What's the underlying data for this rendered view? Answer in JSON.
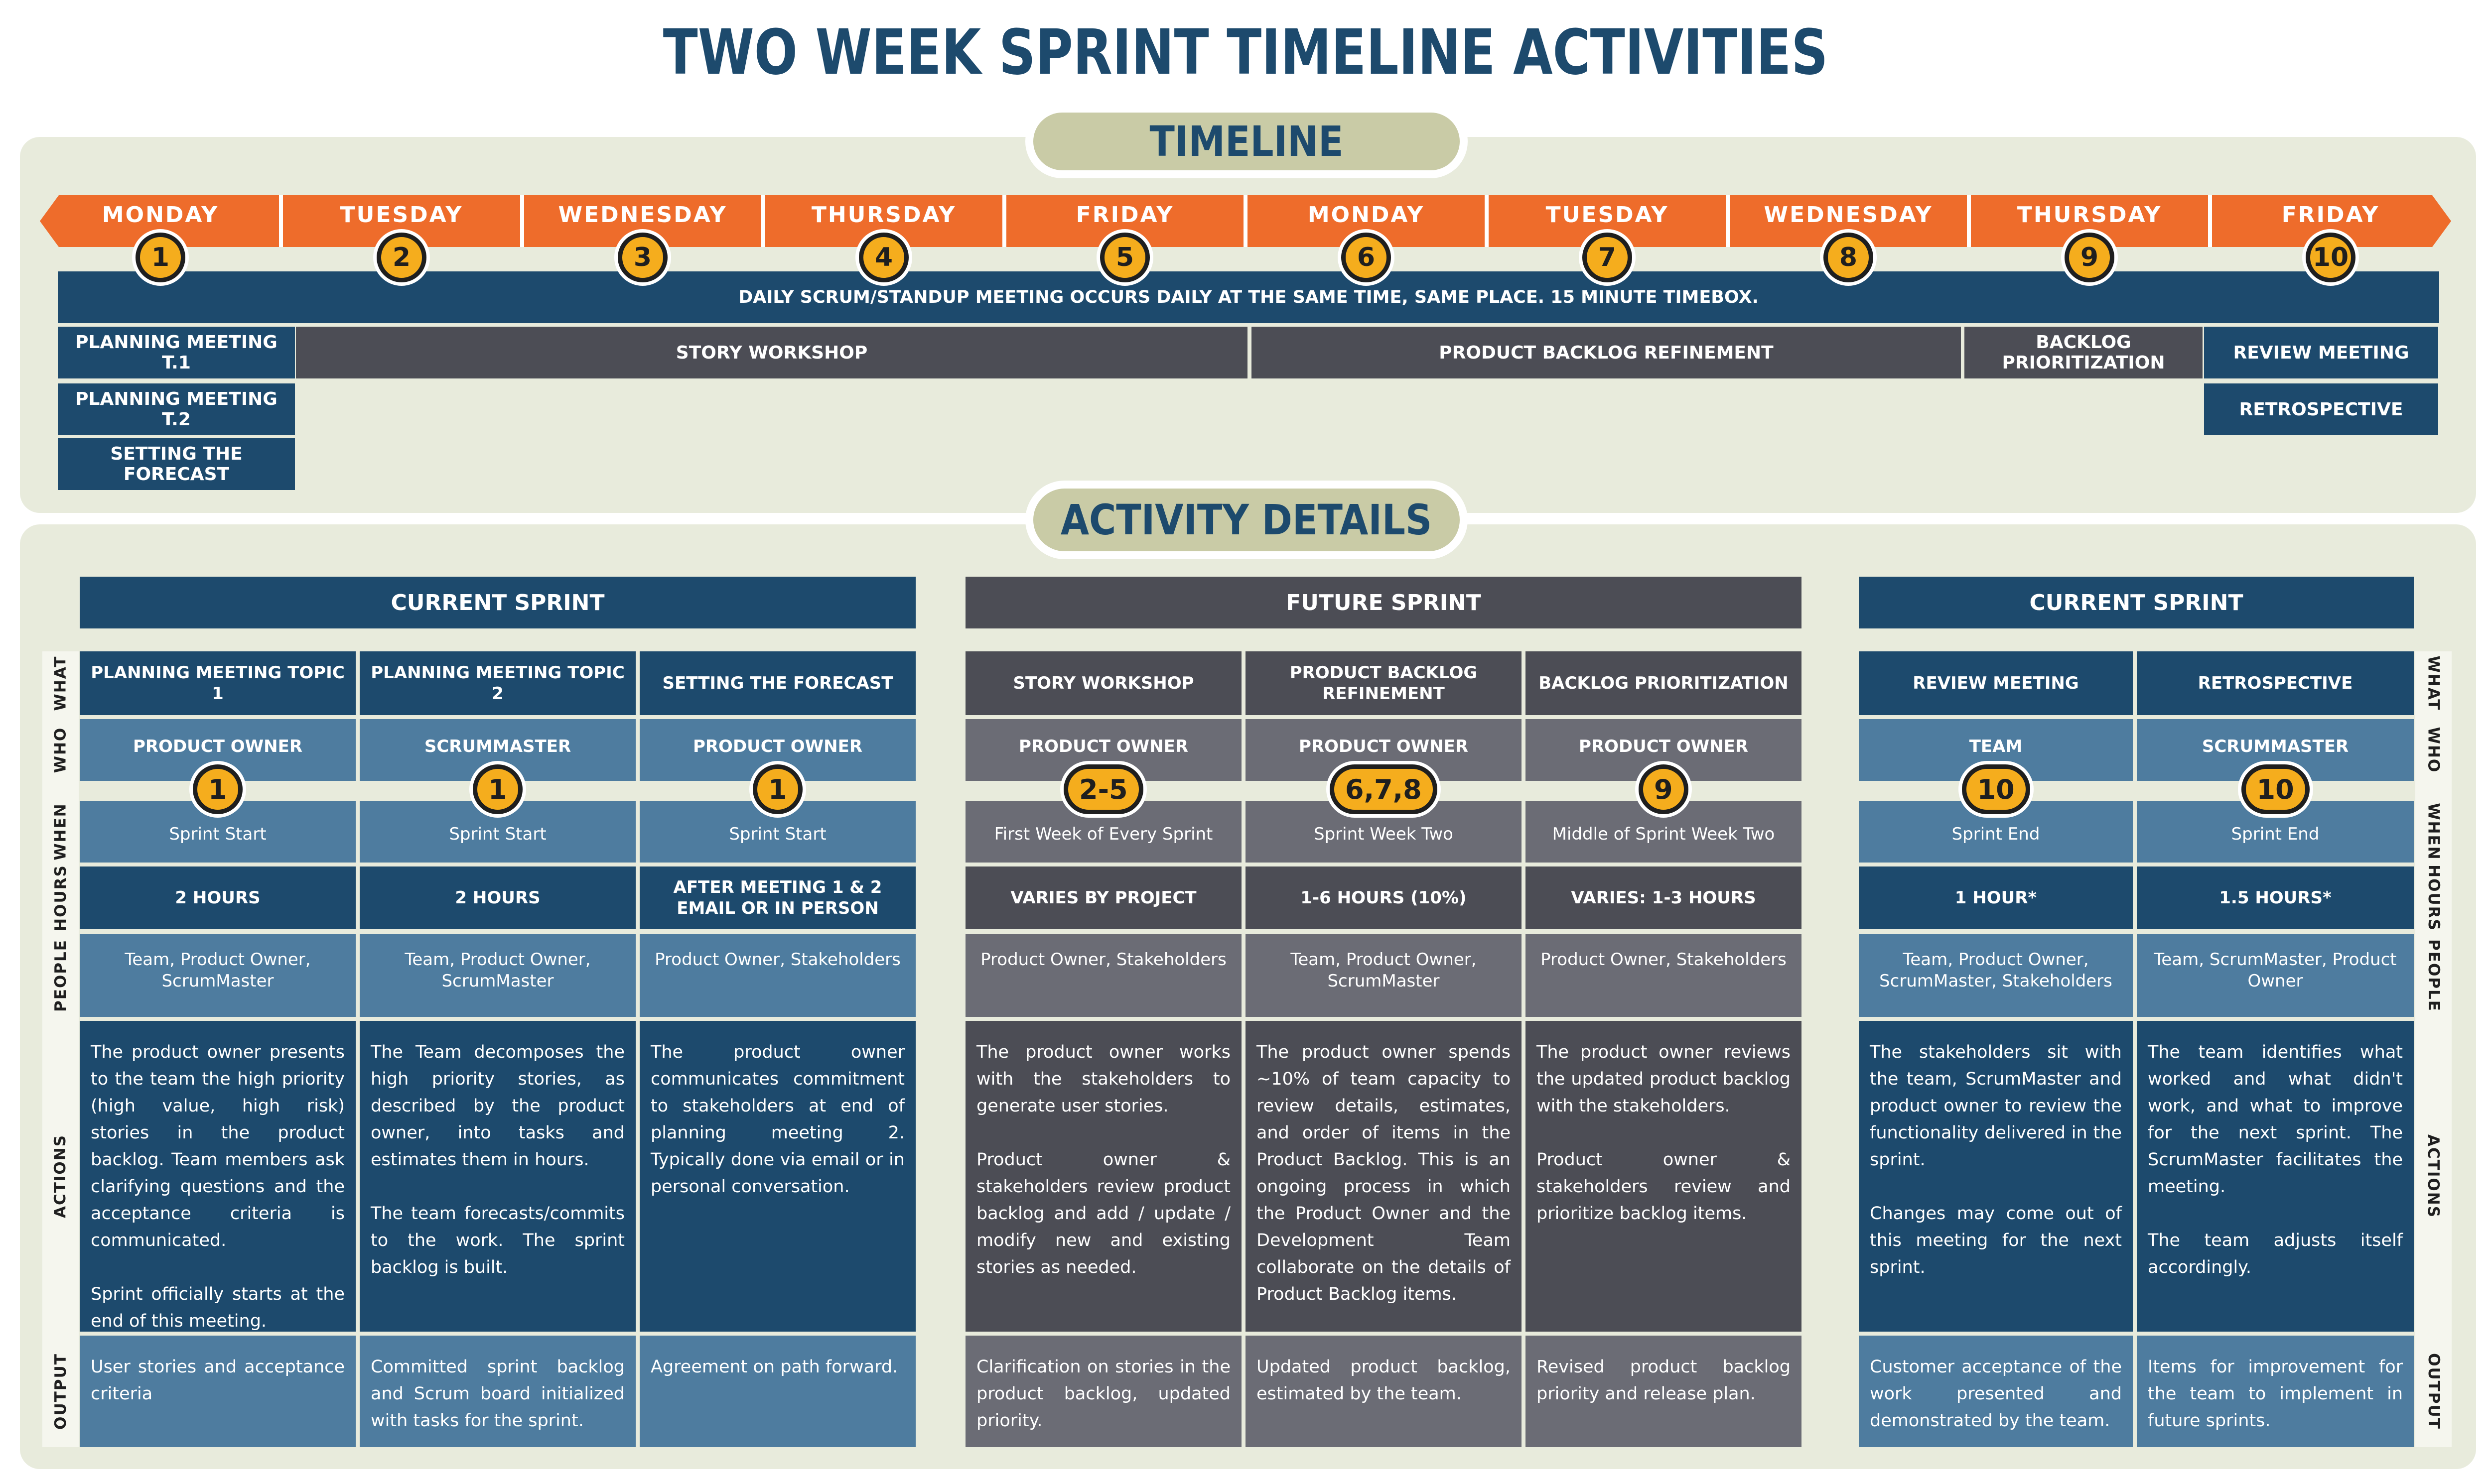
{
  "title": "TWO WEEK SPRINT TIMELINE ACTIVITIES",
  "timeline": {
    "label": "TIMELINE",
    "days": [
      {
        "name": "MONDAY",
        "num": "1"
      },
      {
        "name": "TUESDAY",
        "num": "2"
      },
      {
        "name": "WEDNESDAY",
        "num": "3"
      },
      {
        "name": "THURSDAY",
        "num": "4"
      },
      {
        "name": "FRIDAY",
        "num": "5"
      },
      {
        "name": "MONDAY",
        "num": "6"
      },
      {
        "name": "TUESDAY",
        "num": "7"
      },
      {
        "name": "WEDNESDAY",
        "num": "8"
      },
      {
        "name": "THURSDAY",
        "num": "9"
      },
      {
        "name": "FRIDAY",
        "num": "10"
      }
    ],
    "daily_scrum": "DAILY SCRUM/STANDUP MEETING OCCURS DAILY AT THE SAME TIME, SAME PLACE. 15 MINUTE TIMEBOX.",
    "planning_t1": "PLANNING MEETING T.1",
    "planning_t2": "PLANNING MEETING T.2",
    "forecast": "SETTING THE FORECAST",
    "story_workshop": "STORY WORKSHOP",
    "backlog_refinement": "PRODUCT BACKLOG REFINEMENT",
    "backlog_prioritization": "BACKLOG PRIORITIZATION",
    "review": "REVIEW MEETING",
    "retro": "RETROSPECTIVE"
  },
  "details": {
    "label": "ACTIVITY DETAILS",
    "groups": [
      "CURRENT SPRINT",
      "FUTURE SPRINT",
      "CURRENT SPRINT"
    ],
    "row_labels": {
      "what": "WHAT",
      "who": "WHO",
      "when": "WHEN",
      "hours": "HOURS",
      "people": "PEOPLE",
      "actions": "ACTIONS",
      "output": "OUTPUT"
    },
    "activities": [
      {
        "what": "PLANNING MEETING TOPIC 1",
        "who": "PRODUCT OWNER",
        "day": "1",
        "when": "Sprint Start",
        "hours": "2 HOURS",
        "people": "Team, Product Owner, ScrumMaster",
        "actions": "The product owner presents to the team the high priority (high value, high risk) stories in the product backlog. Team members ask clarifying questions and the acceptance criteria is communicated.\n\nSprint officially starts at the end of this meeting.",
        "output": "User stories and acceptance criteria"
      },
      {
        "what": "PLANNING MEETING TOPIC 2",
        "who": "SCRUMMASTER",
        "day": "1",
        "when": "Sprint Start",
        "hours": "2 HOURS",
        "people": "Team, Product Owner, ScrumMaster",
        "actions": "The Team decomposes the high priority stories, as described by the product owner, into tasks and estimates them in hours.\n\nThe team forecasts/commits to the work. The sprint backlog is built.",
        "output": "Committed sprint backlog and Scrum board initialized with tasks for the sprint."
      },
      {
        "what": "SETTING THE FORECAST",
        "who": "PRODUCT OWNER",
        "day": "1",
        "when": "Sprint Start",
        "hours": "AFTER MEETING 1 & 2 EMAIL OR IN PERSON",
        "people": "Product Owner, Stakeholders",
        "actions": "The product owner communicates commitment to stakeholders at end of planning meeting 2. Typically done via email or in personal conversation.",
        "output": "Agreement on path forward."
      },
      {
        "what": "STORY WORKSHOP",
        "who": "PRODUCT OWNER",
        "day": "2-5",
        "when": "First Week of Every Sprint",
        "hours": "VARIES BY PROJECT",
        "people": "Product Owner, Stakeholders",
        "actions": "The product owner works with the stakeholders to generate user stories.\n\nProduct owner & stakeholders review product backlog and add / update / modify new and existing stories as needed.",
        "output": "Clarification on stories in the product backlog, updated priority."
      },
      {
        "what": "PRODUCT BACKLOG REFINEMENT",
        "who": "PRODUCT OWNER",
        "day": "6,7,8",
        "when": "Sprint Week Two",
        "hours": "1-6 HOURS (10%)",
        "people": "Team, Product Owner, ScrumMaster",
        "actions": "The product owner spends ~10% of team capacity to review details, estimates, and order of items in the Product Backlog. This is an ongoing process in which the Product Owner and the Development Team collaborate on the details of Product Backlog items.",
        "output": "Updated product backlog, estimated by the team."
      },
      {
        "what": "BACKLOG PRIORITIZATION",
        "who": "PRODUCT OWNER",
        "day": "9",
        "when": "Middle of Sprint Week Two",
        "hours": "VARIES: 1-3 HOURS",
        "people": "Product Owner, Stakeholders",
        "actions": "The product owner reviews the updated product backlog with the stakeholders.\n\nProduct owner & stakeholders review and prioritize backlog items.",
        "output": "Revised product backlog priority and release plan."
      },
      {
        "what": "REVIEW MEETING",
        "who": "TEAM",
        "day": "10",
        "when": "Sprint End",
        "hours": "1 HOUR*",
        "people": "Team, Product Owner, ScrumMaster, Stakeholders",
        "actions": "The stakeholders sit with the team, ScrumMaster and product owner to review the functionality delivered in the sprint.\n\nChanges may come out of this meeting for the next sprint.",
        "output": "Customer acceptance of the work presented and demonstrated by the team."
      },
      {
        "what": "RETROSPECTIVE",
        "who": "SCRUMMASTER",
        "day": "10",
        "when": "Sprint End",
        "hours": "1.5 HOURS*",
        "people": "Team, ScrumMaster, Product Owner",
        "actions": "The team identifies what worked and what didn't work, and what to improve for the next sprint. The ScrumMaster facilitates the meeting.\n\nThe team adjusts itself accordingly.",
        "output": "Items for improvement for the team to implement in future sprints."
      }
    ]
  },
  "colors": {
    "navy": "#1d4a6d",
    "orange": "#ee6c2b",
    "gray_dark": "#4c4d55",
    "gray_mid": "#6b6c75",
    "blue_mid": "#4e7c9f",
    "badge": "#f5ad1d",
    "panel": "#e8ebdc",
    "pill": "#c9cba6"
  }
}
